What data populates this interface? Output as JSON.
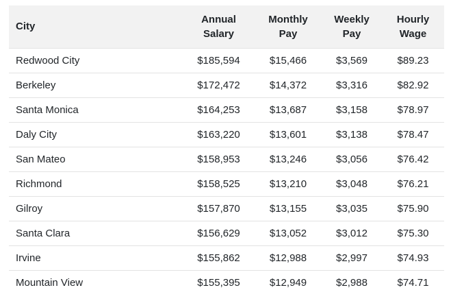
{
  "table": {
    "columns": [
      {
        "key": "city",
        "label_lines": [
          "City"
        ]
      },
      {
        "key": "annual",
        "label_lines": [
          "Annual",
          "Salary"
        ]
      },
      {
        "key": "monthly",
        "label_lines": [
          "Monthly",
          "Pay"
        ]
      },
      {
        "key": "weekly",
        "label_lines": [
          "Weekly",
          "Pay"
        ]
      },
      {
        "key": "hourly",
        "label_lines": [
          "Hourly",
          "Wage"
        ]
      }
    ],
    "rows": [
      {
        "city": "Redwood City",
        "annual": "$185,594",
        "monthly": "$15,466",
        "weekly": "$3,569",
        "hourly": "$89.23"
      },
      {
        "city": "Berkeley",
        "annual": "$172,472",
        "monthly": "$14,372",
        "weekly": "$3,316",
        "hourly": "$82.92"
      },
      {
        "city": "Santa Monica",
        "annual": "$164,253",
        "monthly": "$13,687",
        "weekly": "$3,158",
        "hourly": "$78.97"
      },
      {
        "city": "Daly City",
        "annual": "$163,220",
        "monthly": "$13,601",
        "weekly": "$3,138",
        "hourly": "$78.47"
      },
      {
        "city": "San Mateo",
        "annual": "$158,953",
        "monthly": "$13,246",
        "weekly": "$3,056",
        "hourly": "$76.42"
      },
      {
        "city": "Richmond",
        "annual": "$158,525",
        "monthly": "$13,210",
        "weekly": "$3,048",
        "hourly": "$76.21"
      },
      {
        "city": "Gilroy",
        "annual": "$157,870",
        "monthly": "$13,155",
        "weekly": "$3,035",
        "hourly": "$75.90"
      },
      {
        "city": "Santa Clara",
        "annual": "$156,629",
        "monthly": "$13,052",
        "weekly": "$3,012",
        "hourly": "$75.30"
      },
      {
        "city": "Irvine",
        "annual": "$155,862",
        "monthly": "$12,988",
        "weekly": "$2,997",
        "hourly": "$74.93"
      },
      {
        "city": "Mountain View",
        "annual": "$155,395",
        "monthly": "$12,949",
        "weekly": "$2,988",
        "hourly": "$74.71"
      }
    ]
  }
}
